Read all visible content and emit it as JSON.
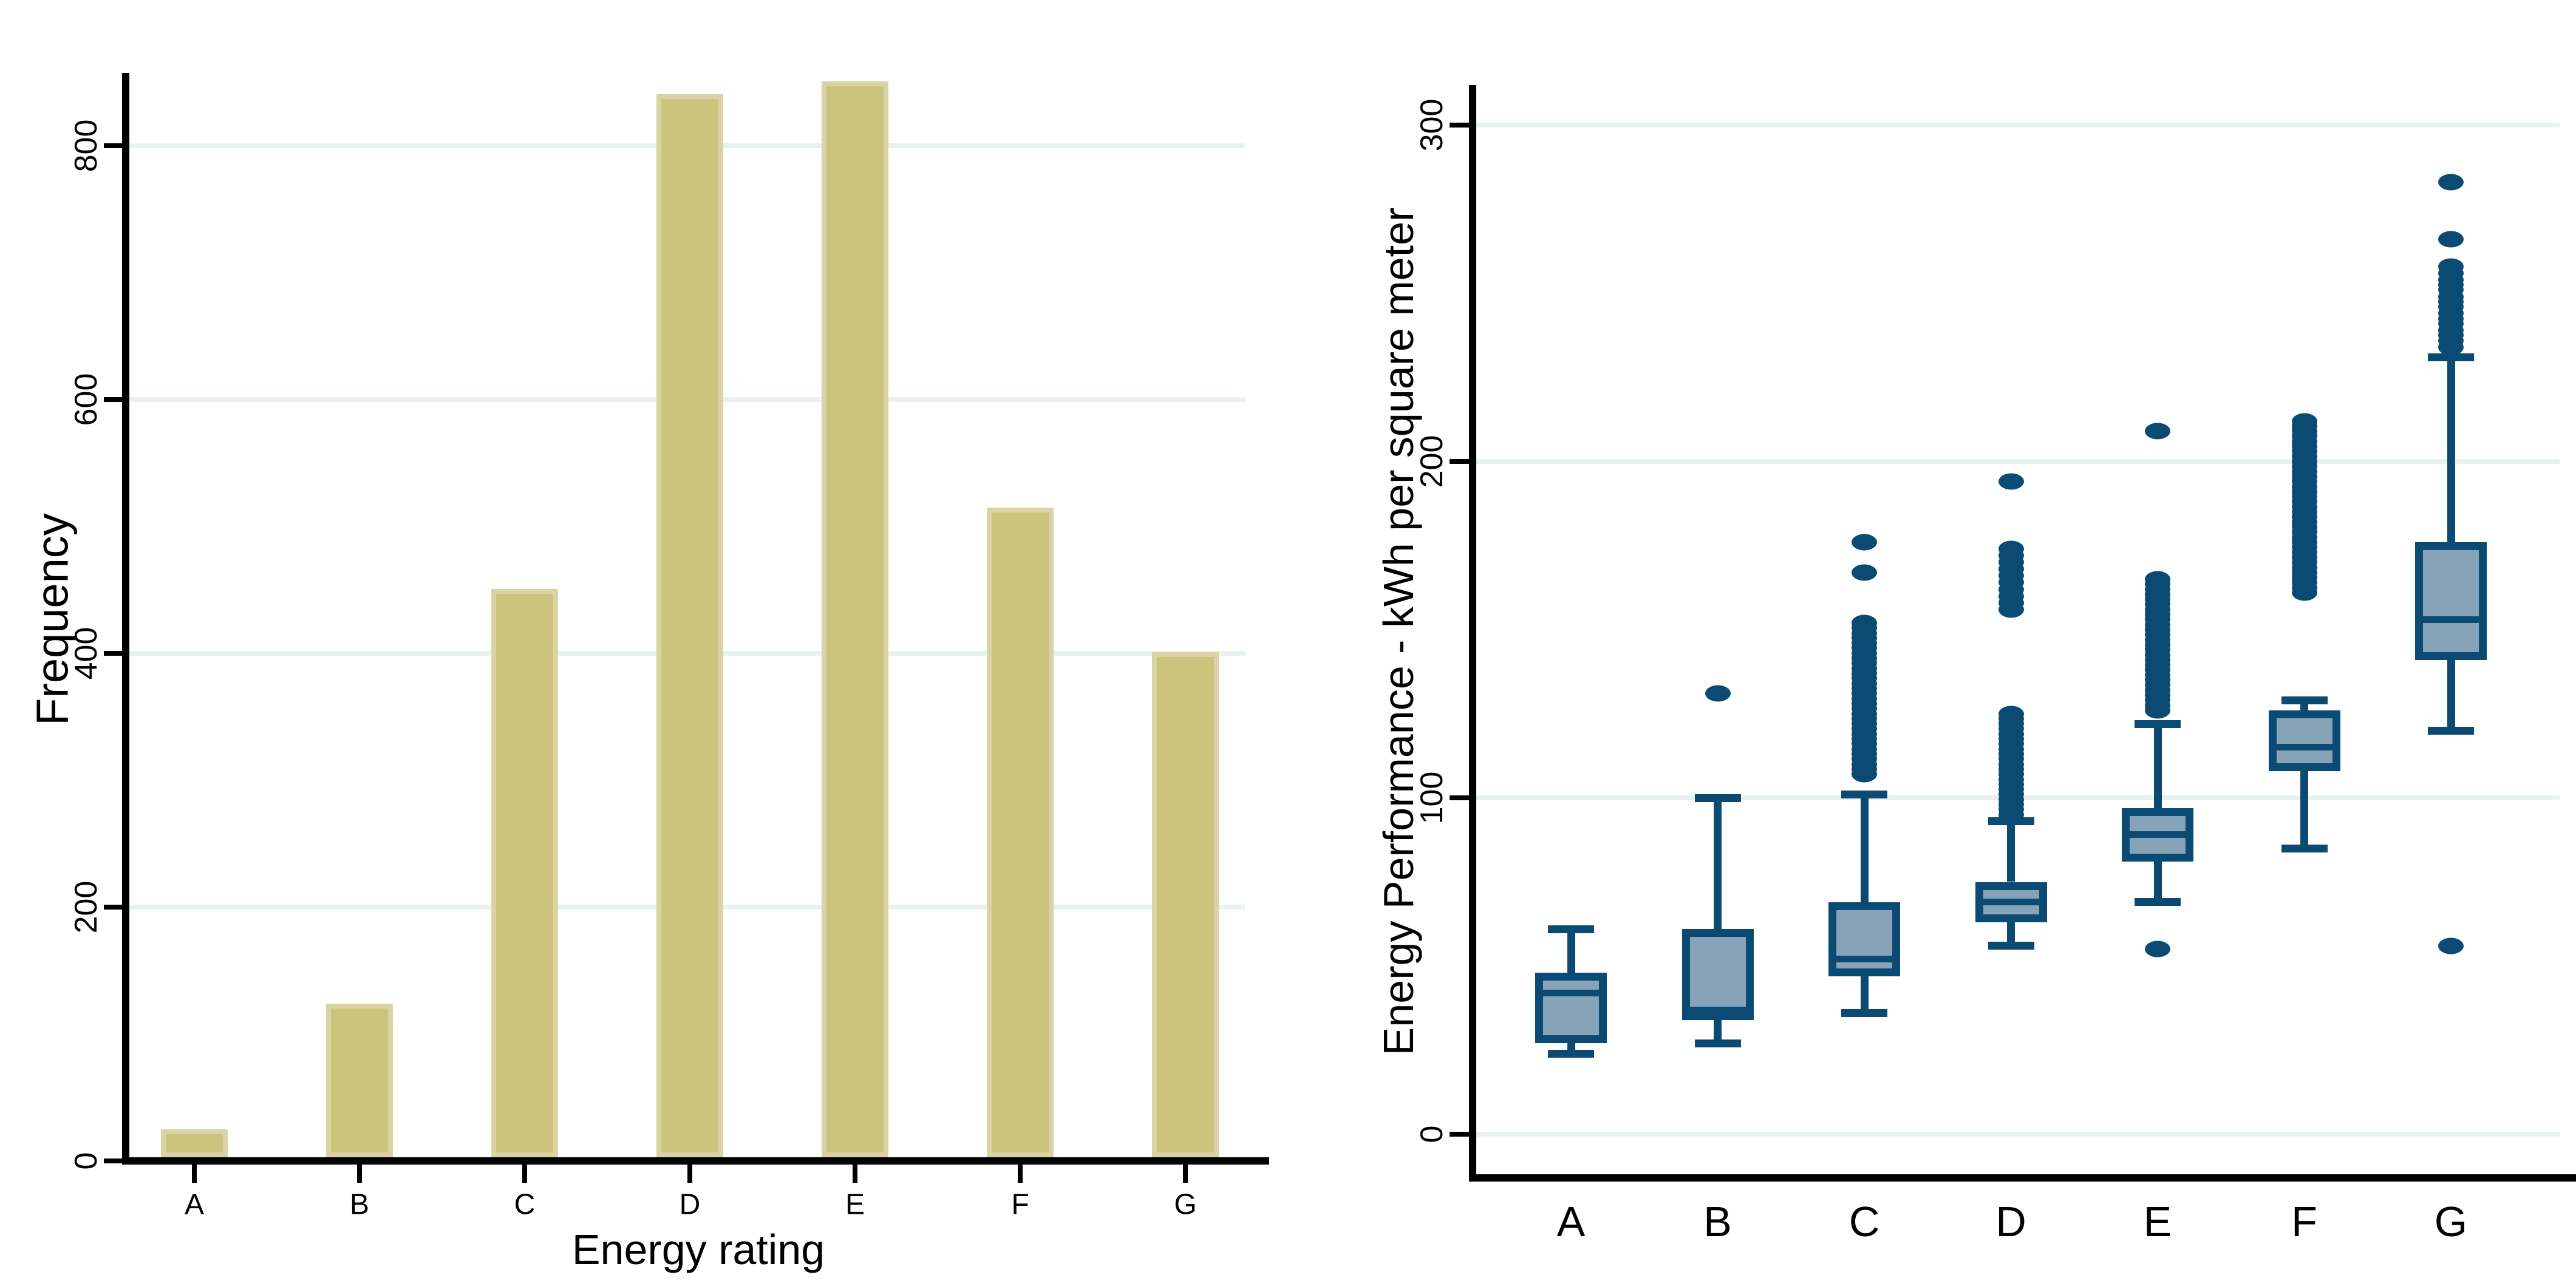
{
  "page": {
    "background_color": "#ffffff",
    "description": "Two-panel statistical graphic: left histogram of energy rating frequencies, right box plot of energy performance by rating"
  },
  "chart_data": [
    {
      "type": "bar",
      "title": "",
      "xlabel": "Energy rating",
      "ylabel": "Frequency",
      "categories": [
        "A",
        "B",
        "C",
        "D",
        "E",
        "F",
        "G"
      ],
      "values": [
        22,
        121,
        448,
        838,
        848,
        512,
        398
      ],
      "yticks": [
        0,
        200,
        400,
        600,
        800
      ],
      "ylim": [
        0,
        860
      ],
      "grid": "horizontal",
      "legend": "none",
      "bar_fill_color": "#ccc47d",
      "bar_border_color": "#dad4a4",
      "gridline_color": "#e9f2f1",
      "axis_color": "#000000"
    },
    {
      "type": "box",
      "title": "",
      "xlabel": "",
      "ylabel": "Energy Performance - kWh per square meter",
      "categories": [
        "A",
        "B",
        "C",
        "D",
        "E",
        "F",
        "G"
      ],
      "yticks": [
        0,
        100,
        200,
        300
      ],
      "ylim": [
        -12,
        312
      ],
      "grid": "horizontal",
      "legend": "none",
      "box_fill_color": "#87a3b8",
      "line_color": "#0a4a73",
      "gridline_color": "#e9f2f1",
      "axis_color": "#000000",
      "series": [
        {
          "category": "A",
          "whisker_low": 24,
          "q1": 27,
          "median": 42,
          "q3": 48,
          "whisker_high": 61,
          "outliers": []
        },
        {
          "category": "B",
          "whisker_low": 27,
          "q1": 34,
          "median": 37,
          "q3": 61,
          "whisker_high": 100,
          "outliers": [
            131
          ]
        },
        {
          "category": "C",
          "whisker_low": 36,
          "q1": 47,
          "median": 52,
          "q3": 69,
          "whisker_high": 101,
          "outliers": [
            107,
            108.5,
            110,
            111.5,
            113,
            114.5,
            116,
            117.5,
            119,
            120.5,
            122,
            123.5,
            125,
            126.5,
            128,
            129.5,
            131,
            132.5,
            134,
            135.5,
            137,
            138.5,
            140,
            141.5,
            143,
            144.5,
            146,
            147.5,
            149,
            150.5,
            152,
            167,
            176
          ]
        },
        {
          "category": "D",
          "whisker_low": 56,
          "q1": 63,
          "median": 69,
          "q3": 75,
          "whisker_high": 93,
          "outliers": [
            95,
            96.5,
            98,
            99.5,
            101,
            102.5,
            104,
            105.5,
            107,
            108.5,
            110,
            111.5,
            113,
            114.5,
            116,
            117.5,
            119,
            120.5,
            122,
            123.5,
            125,
            156,
            158,
            160,
            162,
            164,
            166,
            168,
            170,
            172,
            174,
            194
          ]
        },
        {
          "category": "E",
          "whisker_low": 69,
          "q1": 81,
          "median": 89,
          "q3": 97,
          "whisker_high": 122,
          "outliers": [
            55,
            126,
            127.5,
            129,
            130.5,
            132,
            133.5,
            135,
            136.5,
            138,
            139.5,
            141,
            142.5,
            144,
            145.5,
            147,
            148.5,
            150,
            151.5,
            153,
            154.5,
            156,
            157.5,
            159,
            160.5,
            162,
            163.5,
            165,
            209
          ]
        },
        {
          "category": "F",
          "whisker_low": 85,
          "q1": 108,
          "median": 115,
          "q3": 126,
          "whisker_high": 129,
          "outliers": [
            161,
            162.5,
            164,
            165.5,
            167,
            168.5,
            170,
            171.5,
            173,
            174.5,
            176,
            177.5,
            179,
            180.5,
            182,
            183.5,
            185,
            186.5,
            188,
            189.5,
            191,
            192.5,
            194,
            195.5,
            197,
            198.5,
            200,
            201.5,
            203,
            204.5,
            206,
            207.5,
            209,
            210.5,
            212
          ]
        },
        {
          "category": "G",
          "whisker_low": 120,
          "q1": 141,
          "median": 153,
          "q3": 176,
          "whisker_high": 231,
          "outliers": [
            56,
            234,
            236,
            237.5,
            239,
            241,
            242.5,
            244,
            246,
            247.5,
            249,
            251,
            252.5,
            254,
            256,
            258,
            266,
            283
          ]
        }
      ]
    }
  ]
}
